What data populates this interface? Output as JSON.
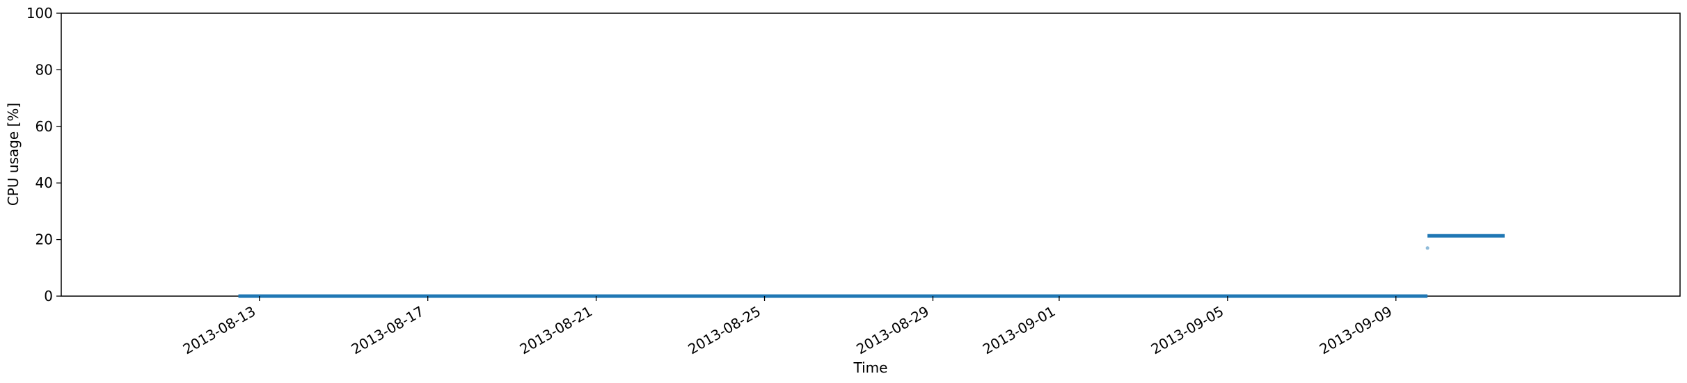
{
  "chart_data": {
    "type": "scatter",
    "title": "",
    "xlabel": "Time",
    "ylabel": "CPU usage [%]",
    "xlim": [
      "2013-08-08T07:00",
      "2013-09-15T18:00"
    ],
    "ylim": [
      0,
      100
    ],
    "grid": false,
    "legend": "none",
    "x_ticks": [
      {
        "value": "2013-08-13",
        "label": "2013-08-13"
      },
      {
        "value": "2013-08-17",
        "label": "2013-08-17"
      },
      {
        "value": "2013-08-21",
        "label": "2013-08-21"
      },
      {
        "value": "2013-08-25",
        "label": "2013-08-25"
      },
      {
        "value": "2013-08-29",
        "label": "2013-08-29"
      },
      {
        "value": "2013-09-01",
        "label": "2013-09-01"
      },
      {
        "value": "2013-09-05",
        "label": "2013-09-05"
      },
      {
        "value": "2013-09-09",
        "label": "2013-09-09"
      }
    ],
    "y_ticks": [
      0,
      20,
      40,
      60,
      80,
      100
    ],
    "series": [
      {
        "color": "#1f77b4",
        "segments": [
          {
            "x_start": "2013-08-12T12:00",
            "x_end": "2013-09-09T18:00",
            "y": 0
          },
          {
            "x_start": "2013-09-09T18:00",
            "x_end": "2013-09-11T14:00",
            "y": 21.3
          }
        ],
        "points": [
          {
            "x": "2013-09-09T18:00",
            "y": 17
          }
        ]
      }
    ]
  }
}
